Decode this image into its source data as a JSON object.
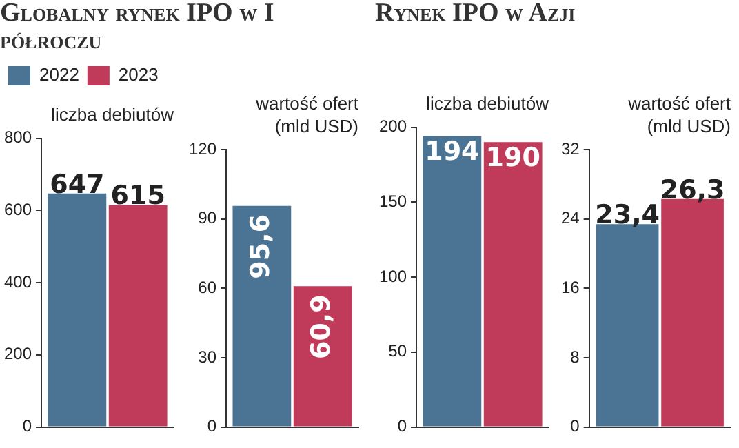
{
  "chart_data": [
    {
      "type": "bar",
      "title": "Globalny rynek IPO w I półroczu",
      "subtitle": "liczba debiutów",
      "categories": [
        null
      ],
      "series": [
        {
          "name": "2022",
          "color": "#4a7394",
          "values": [
            647
          ],
          "value_labels": [
            "647"
          ]
        },
        {
          "name": "2023",
          "color": "#c03a5a",
          "values": [
            615
          ],
          "value_labels": [
            "615"
          ]
        }
      ],
      "ylim": [
        0,
        800
      ],
      "yticks": [
        0,
        200,
        400,
        600,
        800
      ],
      "grid": false,
      "legend": "top left"
    },
    {
      "type": "bar",
      "subtitle": "wartość ofert (mld USD)",
      "categories": [
        null
      ],
      "series": [
        {
          "color": "#4a7394",
          "values": [
            95.6
          ],
          "value_labels": [
            "95,6"
          ]
        },
        {
          "color": "#c03a5a",
          "values": [
            60.9
          ],
          "value_labels": [
            "60,9"
          ]
        }
      ],
      "ylim": [
        0,
        120
      ],
      "yticks": [
        0,
        30,
        60,
        90,
        120
      ],
      "grid": false
    },
    {
      "type": "bar",
      "title": "Rynek IPO w Azji",
      "subtitle": "liczba debiutów",
      "categories": [
        null
      ],
      "series": [
        {
          "color": "#4a7394",
          "values": [
            194
          ],
          "value_labels": [
            "194"
          ]
        },
        {
          "color": "#c03a5a",
          "values": [
            190
          ],
          "value_labels": [
            "190"
          ]
        }
      ],
      "ylim": [
        0,
        200
      ],
      "yticks": [
        0,
        50,
        100,
        150,
        200
      ],
      "grid": false
    },
    {
      "type": "bar",
      "subtitle": "wartość ofert (mld USD)",
      "categories": [
        null
      ],
      "series": [
        {
          "color": "#4a7394",
          "values": [
            23.4
          ],
          "value_labels": [
            "23,4"
          ]
        },
        {
          "color": "#c03a5a",
          "values": [
            26.3
          ],
          "value_labels": [
            "26,3"
          ]
        }
      ],
      "ylim": [
        0,
        32
      ],
      "yticks": [
        0,
        8,
        16,
        24,
        32
      ],
      "grid": false
    }
  ]
}
